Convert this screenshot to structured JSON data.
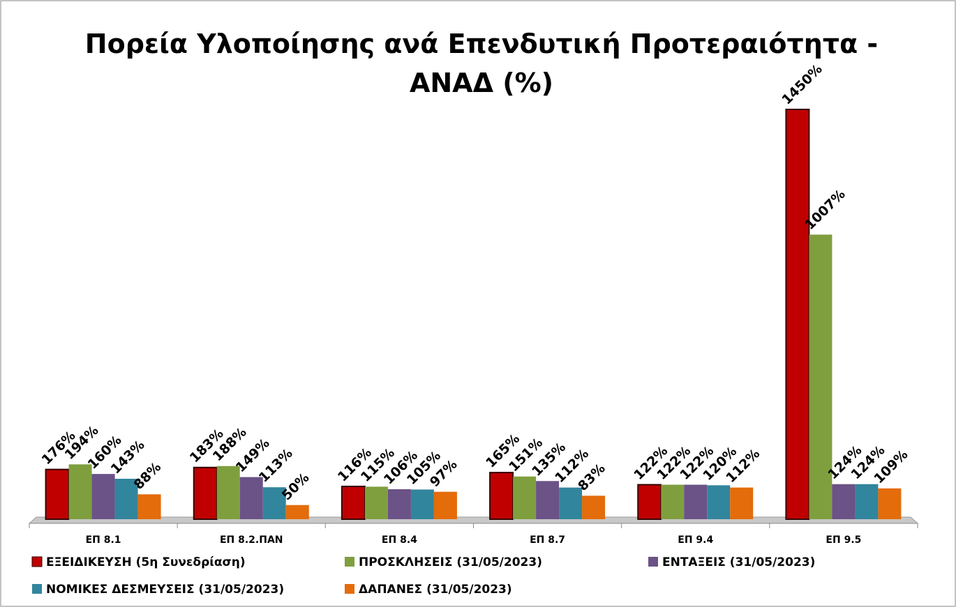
{
  "chart_data": {
    "type": "bar",
    "title": [
      "Πορεία Υλοποίησης ανά Επενδυτική Προτεραιότητα -",
      "ΑΝΑΔ (%)"
    ],
    "categories": [
      "ΕΠ 8.1",
      "ΕΠ 8.2.ΠΑΝ",
      "ΕΠ 8.4",
      "ΕΠ 8.7",
      "ΕΠ 9.4",
      "ΕΠ 9.5"
    ],
    "series": [
      {
        "name": "ΕΞΕΙΔΙΚΕΥΣΗ (5η Συνεδρίαση)",
        "color": "#c00000",
        "values": [
          176,
          183,
          116,
          165,
          122,
          1450
        ],
        "value_labels": [
          "176%",
          "183%",
          "116%",
          "165%",
          "122%",
          "1450%"
        ]
      },
      {
        "name": "ΠΡΟΣΚΛΗΣΕΙΣ (31/05/2023)",
        "color": "#7f9f3f",
        "values": [
          194,
          188,
          115,
          151,
          122,
          1007
        ],
        "value_labels": [
          "194%",
          "188%",
          "115%",
          "151%",
          "122%",
          "1007%"
        ]
      },
      {
        "name": "ΕΝΤΑΞΕΙΣ (31/05/2023)",
        "color": "#6b5287",
        "values": [
          160,
          149,
          106,
          135,
          122,
          124
        ],
        "value_labels": [
          "160%",
          "149%",
          "106%",
          "135%",
          "122%",
          "124%"
        ]
      },
      {
        "name": "ΝΟΜΙΚΕΣ ΔΕΣΜΕΥΣΕΙΣ (31/05/2023)",
        "color": "#31859c",
        "values": [
          143,
          113,
          105,
          112,
          120,
          124
        ],
        "value_labels": [
          "143%",
          "113%",
          "105%",
          "112%",
          "120%",
          "124%"
        ]
      },
      {
        "name": "ΔΑΠΑΝΕΣ  (31/05/2023)",
        "color": "#e46c0a",
        "values": [
          88,
          50,
          97,
          83,
          112,
          109
        ],
        "value_labels": [
          "88%",
          "50%",
          "97%",
          "83%",
          "112%",
          "109%"
        ]
      }
    ]
  }
}
